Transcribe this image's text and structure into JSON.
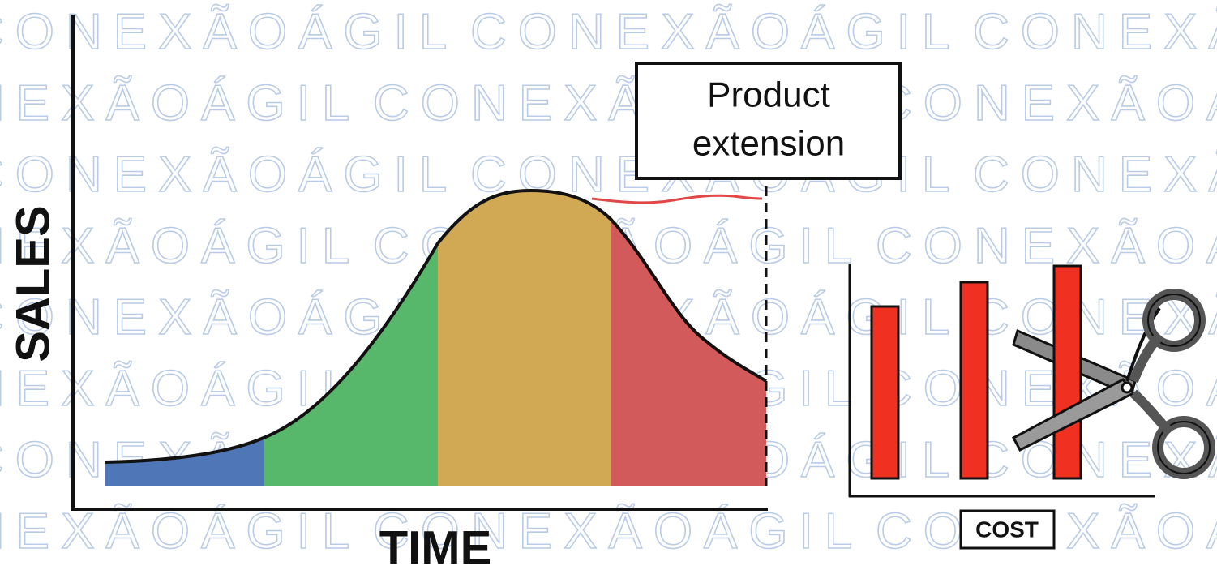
{
  "watermark": "CONEXÃOÁGIL",
  "labels": {
    "y_axis": "SALES",
    "x_axis": "TIME",
    "callout": [
      "Product",
      "extension"
    ],
    "cost": "COST"
  }
}
